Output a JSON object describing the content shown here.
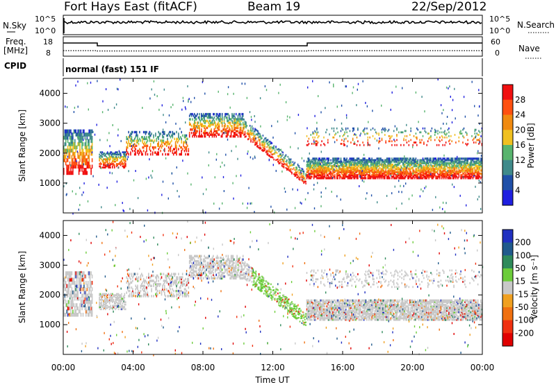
{
  "header": {
    "station": "Fort Hays East (fitACF)",
    "beam": "Beam 19",
    "date": "22/Sep/2012"
  },
  "panels": {
    "nsky": {
      "label": "N.Sky",
      "ticks": [
        "10^5",
        "10^0"
      ]
    },
    "nsearch": {
      "label": "N.Search",
      "ticks": [
        "10^5",
        "10^0"
      ]
    },
    "freq": {
      "label_line1": "Freq.",
      "label_line2": "[MHz]",
      "ticks": [
        "18",
        "8"
      ]
    },
    "nave": {
      "label": "Nave",
      "ticks": [
        "60",
        "0"
      ]
    },
    "cpid": {
      "label": "CPID",
      "value": "normal (fast) 151 IF"
    }
  },
  "chart_data": [
    {
      "type": "heatmap",
      "name": "Power",
      "ylabel": "Slant Range [km]",
      "yticks": [
        "1000",
        "2000",
        "3000",
        "4000"
      ],
      "ylim": [
        0,
        4500
      ],
      "colorbar_label": "Power [dB]",
      "colorbar_ticks": [
        "4",
        "8",
        "12",
        "16",
        "20",
        "24",
        "28"
      ],
      "colors": [
        "#1f1fe0",
        "#1f4fa8",
        "#3f8a8a",
        "#58b46e",
        "#f0c020",
        "#f08a10",
        "#ff5010",
        "#f01010"
      ]
    },
    {
      "type": "heatmap",
      "name": "Velocity",
      "ylabel": "Slant Range [km]",
      "yticks": [
        "1000",
        "2000",
        "3000",
        "4000"
      ],
      "ylim": [
        0,
        4500
      ],
      "colorbar_label": "Velocity [m s⁻¹]",
      "colorbar_ticks": [
        "200",
        "100",
        "50",
        "15",
        "-15",
        "-50",
        "-100",
        "-200"
      ],
      "colors": [
        "#2030c0",
        "#205a8c",
        "#2e8a5a",
        "#6ccc3a",
        "#c8c8c8",
        "#f0a020",
        "#f07010",
        "#f03010",
        "#e00000"
      ]
    }
  ],
  "xaxis": {
    "ticks": [
      "00:00",
      "04:00",
      "08:00",
      "12:00",
      "16:00",
      "20:00",
      "00:00"
    ],
    "label": "Time UT"
  }
}
